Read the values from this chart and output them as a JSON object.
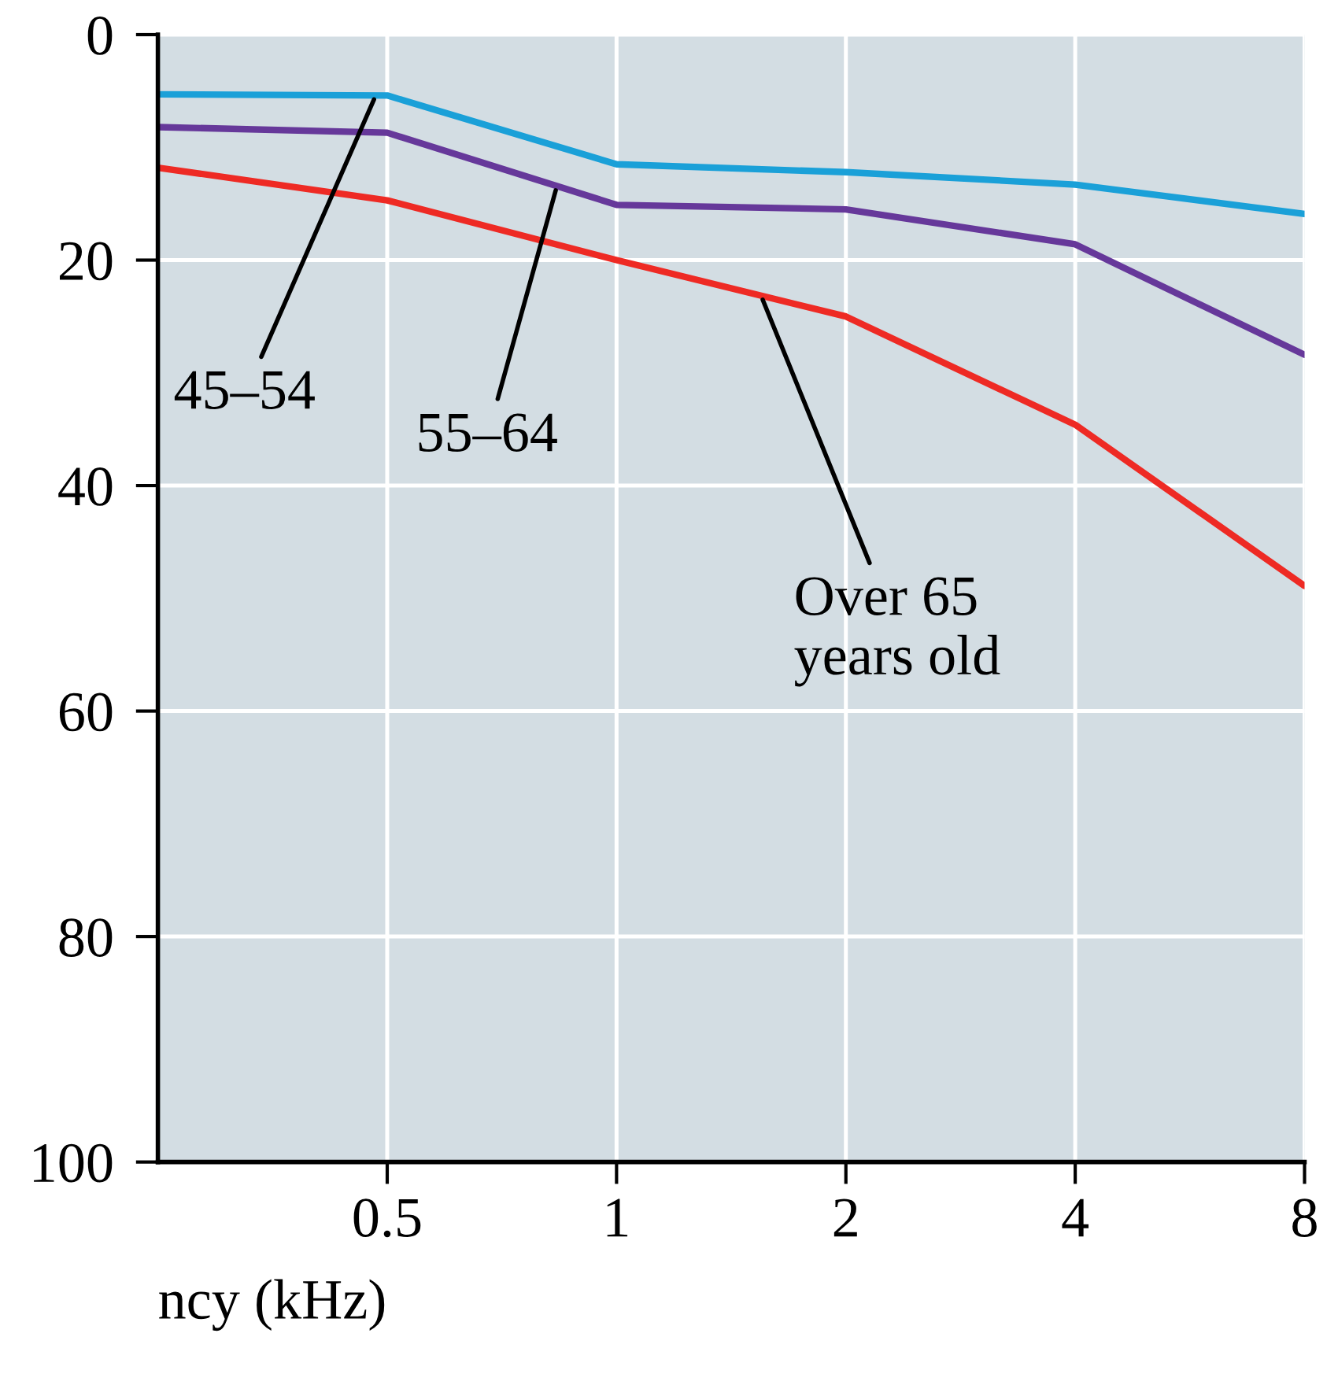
{
  "chart_data": {
    "type": "line",
    "xlabel": "ncy (kHz)",
    "x": [
      0.25,
      0.5,
      1,
      2,
      4,
      8
    ],
    "series": [
      {
        "name": "45–54",
        "color": "#1aa0d8",
        "values": [
          5.3,
          5.4,
          11.5,
          12.2,
          13.3,
          15.9
        ]
      },
      {
        "name": "55–64",
        "color": "#66389a",
        "values": [
          8.2,
          8.7,
          15.1,
          15.5,
          18.6,
          28.4
        ]
      },
      {
        "name": "Over 65\nyears old",
        "color": "#ee2a24",
        "values": [
          11.8,
          14.7,
          20.0,
          25.0,
          34.6,
          48.9
        ]
      }
    ],
    "log": "x",
    "xlim": [
      0.25,
      8
    ],
    "xticks": [
      0.5,
      1,
      2,
      4,
      8
    ],
    "ylim": [
      100,
      0
    ],
    "yticks": [
      0,
      20,
      40,
      60,
      80,
      100
    ],
    "grid": true,
    "legend": false,
    "marker": "none",
    "line_style": "solid"
  }
}
